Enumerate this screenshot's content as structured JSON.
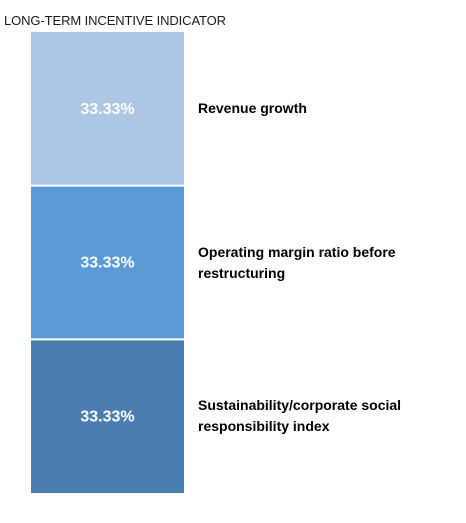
{
  "chart_data": {
    "type": "bar",
    "stacked": true,
    "title": "LONG-TERM INCENTIVE INDICATOR",
    "categories": [
      "Revenue growth",
      "Operating margin ratio before restructuring",
      "Sustainability/corporate social responsibility index"
    ],
    "values": [
      33.33,
      33.33,
      33.33
    ],
    "value_labels": [
      "33.33%",
      "33.33%",
      "33.33%"
    ],
    "colors": [
      "#adc6e6",
      "#5b9bd5",
      "#4a7eb0"
    ],
    "legend": "right",
    "grid": false
  }
}
